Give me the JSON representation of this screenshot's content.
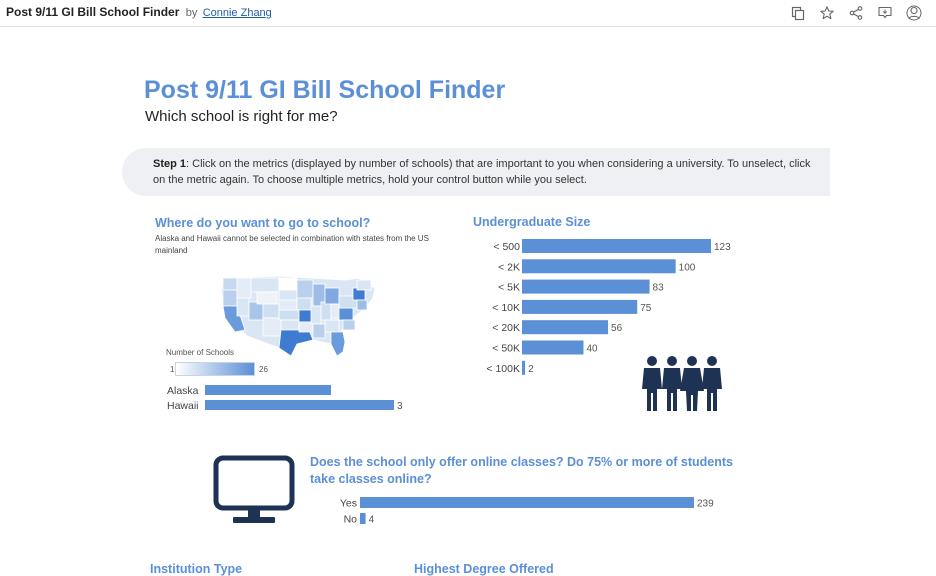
{
  "topbar": {
    "title": "Post 9/11 GI Bill School Finder",
    "by": "by",
    "author": "Connie Zhang",
    "icons": [
      "copy-icon",
      "star-icon",
      "share-icon",
      "comment-icon",
      "user-badge-icon"
    ]
  },
  "header": {
    "title": "Post 9/11 GI Bill School Finder",
    "subtitle": "Which school is right for me?"
  },
  "step1": {
    "label": "Step 1",
    "text": ": Click on the metrics (displayed by number of schools) that are important to you when considering a university. To unselect, click on the metric again. To choose multiple metrics, hold your control button while you select."
  },
  "location": {
    "title": "Where do you want to go to school?",
    "note": "Alaska and Hawaii cannot be selected in combination with states from the US mainland",
    "legend_title": "Number of Schools",
    "legend_min": "1",
    "legend_max": "26",
    "colors": {
      "low": "#ffffff",
      "high": "#5b8fd6"
    }
  },
  "undergrad": {
    "title": "Undergraduate Size"
  },
  "online": {
    "title_line1": "Does the school only offer online classes? Do 75% or more of students",
    "title_line2": "take classes online?"
  },
  "partial_titles": [
    "Institution Type",
    "Highest Degree Offered"
  ],
  "chart_data": [
    {
      "type": "bar",
      "orientation": "horizontal",
      "title": "Where do you want to go to school?",
      "categories": [
        "Alaska",
        "Hawaii"
      ],
      "values": [
        null,
        3
      ],
      "data_labels": [
        "",
        "3"
      ]
    },
    {
      "type": "bar",
      "orientation": "horizontal",
      "title": "Undergraduate Size",
      "categories": [
        "< 500",
        "< 2K",
        "< 5K",
        "< 10K",
        "< 20K",
        "< 50K",
        "< 100K"
      ],
      "values": [
        123,
        100,
        83,
        75,
        56,
        40,
        2
      ],
      "color": "#5b8fd6"
    },
    {
      "type": "bar",
      "orientation": "horizontal",
      "title": "Does the school only offer online classes? Do 75% or more of students take classes online?",
      "categories": [
        "Yes",
        "No"
      ],
      "values": [
        239,
        4
      ],
      "color": "#5b8fd6"
    }
  ]
}
